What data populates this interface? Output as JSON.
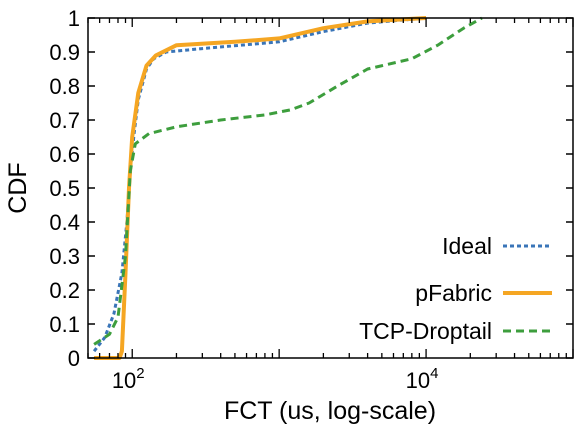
{
  "chart_data": {
    "type": "line",
    "title": "",
    "xlabel": "FCT (us, log-scale)",
    "ylabel": "CDF",
    "x_scale": "log",
    "xlim": [
      50,
      100000
    ],
    "ylim": [
      0,
      1
    ],
    "x_ticks": [
      {
        "value": 100,
        "base": "10",
        "exponent": "2"
      },
      {
        "value": 10000,
        "base": "10",
        "exponent": "4"
      }
    ],
    "y_ticks": [
      "0",
      "0.1",
      "0.2",
      "0.3",
      "0.4",
      "0.5",
      "0.6",
      "0.7",
      "0.8",
      "0.9",
      "1"
    ],
    "grid": false,
    "legend_position": "bottom-right",
    "series": [
      {
        "name": "Ideal",
        "color": "#3a75b8",
        "style": "dotted",
        "points": [
          [
            55,
            0.02
          ],
          [
            65,
            0.06
          ],
          [
            75,
            0.13
          ],
          [
            85,
            0.25
          ],
          [
            92,
            0.4
          ],
          [
            97,
            0.55
          ],
          [
            103,
            0.66
          ],
          [
            110,
            0.76
          ],
          [
            125,
            0.85
          ],
          [
            140,
            0.88
          ],
          [
            170,
            0.9
          ],
          [
            300,
            0.91
          ],
          [
            1000,
            0.93
          ],
          [
            2000,
            0.96
          ],
          [
            4000,
            0.985
          ],
          [
            10000,
            1.0
          ]
        ]
      },
      {
        "name": "pFabric",
        "color": "#f5a623",
        "style": "solid",
        "points": [
          [
            55,
            0.0
          ],
          [
            82,
            0.0
          ],
          [
            85,
            0.02
          ],
          [
            90,
            0.25
          ],
          [
            95,
            0.5
          ],
          [
            100,
            0.65
          ],
          [
            110,
            0.78
          ],
          [
            125,
            0.86
          ],
          [
            145,
            0.89
          ],
          [
            200,
            0.92
          ],
          [
            500,
            0.93
          ],
          [
            1000,
            0.94
          ],
          [
            2000,
            0.97
          ],
          [
            4000,
            0.99
          ],
          [
            10000,
            1.0
          ]
        ]
      },
      {
        "name": "TCP-Droptail",
        "color": "#3d9e3d",
        "style": "dashed",
        "points": [
          [
            55,
            0.04
          ],
          [
            70,
            0.07
          ],
          [
            80,
            0.12
          ],
          [
            90,
            0.3
          ],
          [
            97,
            0.55
          ],
          [
            105,
            0.63
          ],
          [
            130,
            0.66
          ],
          [
            200,
            0.68
          ],
          [
            400,
            0.7
          ],
          [
            800,
            0.715
          ],
          [
            1200,
            0.73
          ],
          [
            1600,
            0.75
          ],
          [
            2500,
            0.8
          ],
          [
            4000,
            0.85
          ],
          [
            8000,
            0.88
          ],
          [
            12000,
            0.92
          ],
          [
            18000,
            0.97
          ],
          [
            24000,
            1.0
          ]
        ]
      }
    ]
  }
}
